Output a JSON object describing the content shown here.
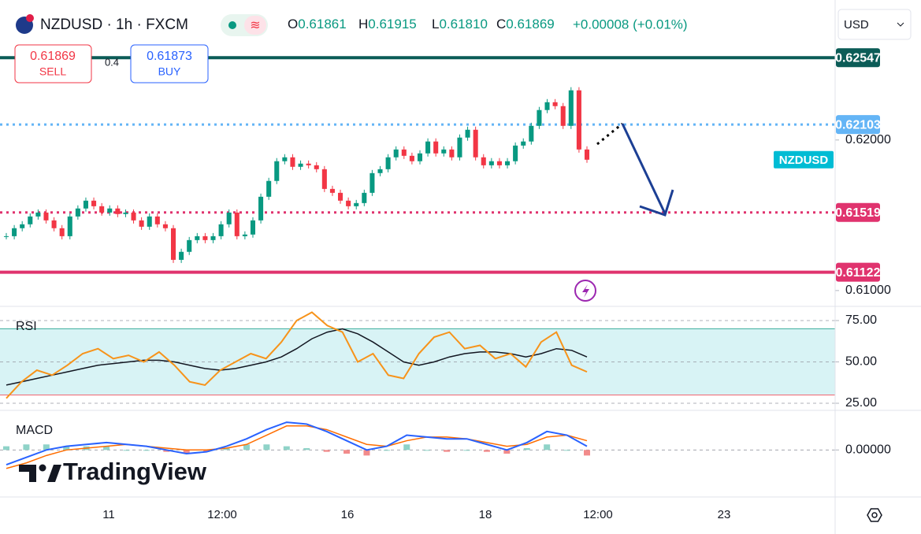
{
  "header": {
    "symbol": "NZDUSD · 1h · FXCM",
    "ohlc": [
      {
        "label": "O",
        "value": "0.61861"
      },
      {
        "label": "H",
        "value": "0.61915"
      },
      {
        "label": "L",
        "value": "0.61810"
      },
      {
        "label": "C",
        "value": "0.61869"
      }
    ],
    "change": "+0.00008 (+0.01%)"
  },
  "trade": {
    "sell_price": "0.61869",
    "sell": "SELL",
    "spread": "0.4",
    "buy_price": "0.61873",
    "buy": "BUY"
  },
  "currency": "USD",
  "watermark": "TradingView",
  "time_axis": {
    "labels": [
      "11",
      "12:00",
      "16",
      "18",
      "12:00",
      "23"
    ]
  },
  "chart_data": [
    {
      "type": "candlestick",
      "up_color": "#089981",
      "down_color": "#f23645",
      "close": [
        0.61361,
        0.61414,
        0.6144,
        0.61492,
        0.61518,
        0.61466,
        0.61414,
        0.61361,
        0.61492,
        0.61545,
        0.61597,
        0.6156,
        0.61518,
        0.61545,
        0.61508,
        0.61518,
        0.61466,
        0.61424,
        0.61492,
        0.6144,
        0.61414,
        0.61204,
        0.61257,
        0.61335,
        0.61361,
        0.61335,
        0.61361,
        0.6144,
        0.61518,
        0.61361,
        0.61372,
        0.61466,
        0.61623,
        0.61728,
        0.61859,
        0.61885,
        0.61822,
        0.61843,
        0.61832,
        0.61806,
        0.61675,
        0.61649,
        0.61597,
        0.6156,
        0.61581,
        0.61649,
        0.6178,
        0.61806,
        0.61885,
        0.61937,
        0.61895,
        0.61859,
        0.61911,
        0.6199,
        0.61911,
        0.61937,
        0.61885,
        0.62016,
        0.62068,
        0.61885,
        0.61832,
        0.61859,
        0.61832,
        0.61859,
        0.61963,
        0.6199,
        0.62094,
        0.62199,
        0.62251,
        0.62225,
        0.62094,
        0.6233,
        0.61937,
        0.61869
      ],
      "ylim": [
        0.609,
        0.6293
      ],
      "yticks": [
        {
          "value": 0.62,
          "label": "0.62000"
        },
        {
          "value": 0.61,
          "label": "0.61000"
        }
      ],
      "levels": [
        {
          "value": 0.62547,
          "label": "0.62547",
          "color": "#0b5c57",
          "style": "solid"
        },
        {
          "value": 0.62103,
          "label": "0.62103",
          "color": "#64b5f6",
          "style": "dotted"
        },
        {
          "value": 0.61519,
          "label": "0.61519",
          "color": "#e0336e",
          "style": "dotted"
        },
        {
          "value": 0.61122,
          "label": "0.61122",
          "color": "#e0336e",
          "style": "solid"
        }
      ],
      "last_tag": "NZDUSD",
      "last_tag_color": "#00bcd4"
    },
    {
      "type": "line",
      "title": "RSI",
      "series": [
        {
          "color": "#f7931a",
          "values": [
            28,
            38,
            45,
            42,
            48,
            55,
            58,
            52,
            54,
            50,
            56,
            48,
            38,
            36,
            45,
            50,
            55,
            52,
            62,
            75,
            80,
            72,
            68,
            50,
            55,
            42,
            40,
            55,
            65,
            68,
            58,
            60,
            52,
            55,
            47,
            62,
            68,
            48,
            44
          ]
        },
        {
          "color": "#131722",
          "values": [
            36,
            38,
            40,
            42,
            44,
            46,
            48,
            49,
            50,
            51,
            51,
            50,
            48,
            46,
            45,
            46,
            48,
            50,
            53,
            58,
            64,
            68,
            70,
            67,
            62,
            56,
            50,
            48,
            50,
            53,
            55,
            56,
            56,
            55,
            53,
            55,
            58,
            57,
            53
          ]
        }
      ],
      "band": [
        30,
        70
      ],
      "band_color": "#d8f3f5",
      "ylim": [
        21.2,
        83.1
      ],
      "yticks": [
        {
          "value": 75,
          "label": "75.00"
        },
        {
          "value": 50,
          "label": "50.00"
        },
        {
          "value": 25,
          "label": "25.00"
        }
      ]
    },
    {
      "type": "line",
      "title": "MACD",
      "series": [
        {
          "color": "#2962ff",
          "values": [
            -0.0008,
            -0.0004,
            0.0,
            0.0002,
            0.0003,
            0.0004,
            0.0003,
            0.0002,
            0.0,
            -0.0002,
            -0.0001,
            0.0002,
            0.0006,
            0.0011,
            0.0015,
            0.0014,
            0.001,
            0.0005,
            0.0,
            0.0002,
            0.0008,
            0.0007,
            0.0006,
            0.0006,
            0.0003,
            0.0,
            0.0004,
            0.001,
            0.0008,
            0.0002
          ]
        },
        {
          "color": "#ff6d00",
          "values": [
            -0.001,
            -0.0007,
            -0.0003,
            0.0,
            0.0001,
            0.0002,
            0.0003,
            0.0002,
            0.0001,
            0.0,
            0.0,
            0.0001,
            0.0003,
            0.0008,
            0.0013,
            0.0013,
            0.0011,
            0.0007,
            0.0003,
            0.0002,
            0.0005,
            0.0007,
            0.0007,
            0.0006,
            0.0004,
            0.0002,
            0.0003,
            0.0007,
            0.0008,
            0.0005
          ]
        }
      ],
      "histogram": [
        0.0002,
        0.0003,
        0.0003,
        0.0002,
        0.0002,
        0.0002,
        0,
        0,
        -0.0001,
        -0.0002,
        -0.0001,
        0.0001,
        0.0003,
        0.0003,
        0.0002,
        0.0001,
        -0.0001,
        -0.0002,
        -0.0003,
        0,
        0.0003,
        0,
        -0.0001,
        0,
        -0.0001,
        -0.0002,
        0.0001,
        0.0003,
        0,
        -0.0003
      ],
      "histogram_colors": [
        "#8fd3c8",
        "#f28b8b"
      ],
      "ylim": [
        -0.0025,
        0.0021
      ],
      "yticks": [
        {
          "value": 0,
          "label": "0.00000"
        }
      ]
    }
  ]
}
